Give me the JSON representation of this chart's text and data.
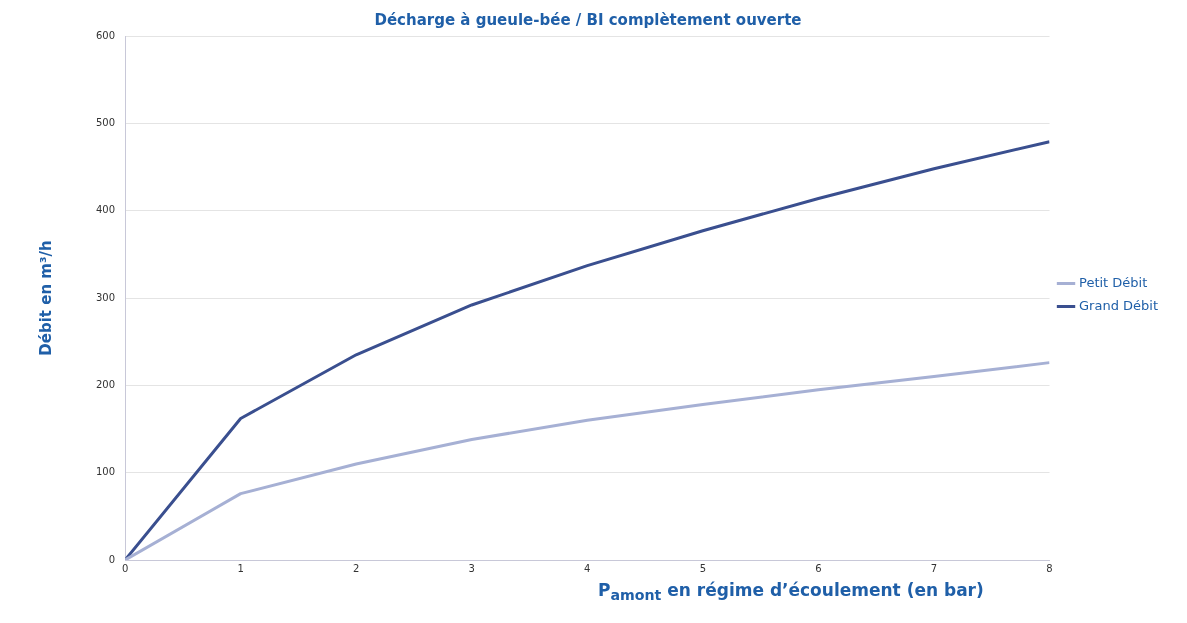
{
  "chart_data": {
    "type": "line",
    "title": "Décharge à gueule-bée / BI complètement ouverte",
    "xlabel": "P$_{amont}$ en régime d’écoulement (en bar)",
    "ylabel": "Débit en m³/h",
    "x": [
      0,
      1,
      2,
      3,
      4,
      5,
      6,
      7,
      8
    ],
    "series": [
      {
        "name": "Petit Débit",
        "color": "#a6b0d4",
        "values": [
          0,
          76,
          110,
          138,
          160,
          178,
          195,
          210,
          226
        ]
      },
      {
        "name": "Grand Débit",
        "color": "#3a4f8f",
        "values": [
          0,
          162,
          235,
          292,
          337,
          377,
          414,
          448,
          479
        ]
      }
    ],
    "xlim": [
      0,
      8
    ],
    "xticks": [
      0,
      1,
      2,
      3,
      4,
      5,
      6,
      7,
      8
    ],
    "ylim": [
      0,
      600
    ],
    "yticks": [
      0,
      100,
      200,
      300,
      400,
      500,
      600
    ],
    "grid": "y",
    "legend": "right",
    "marker": "none",
    "line_style": "solid"
  }
}
